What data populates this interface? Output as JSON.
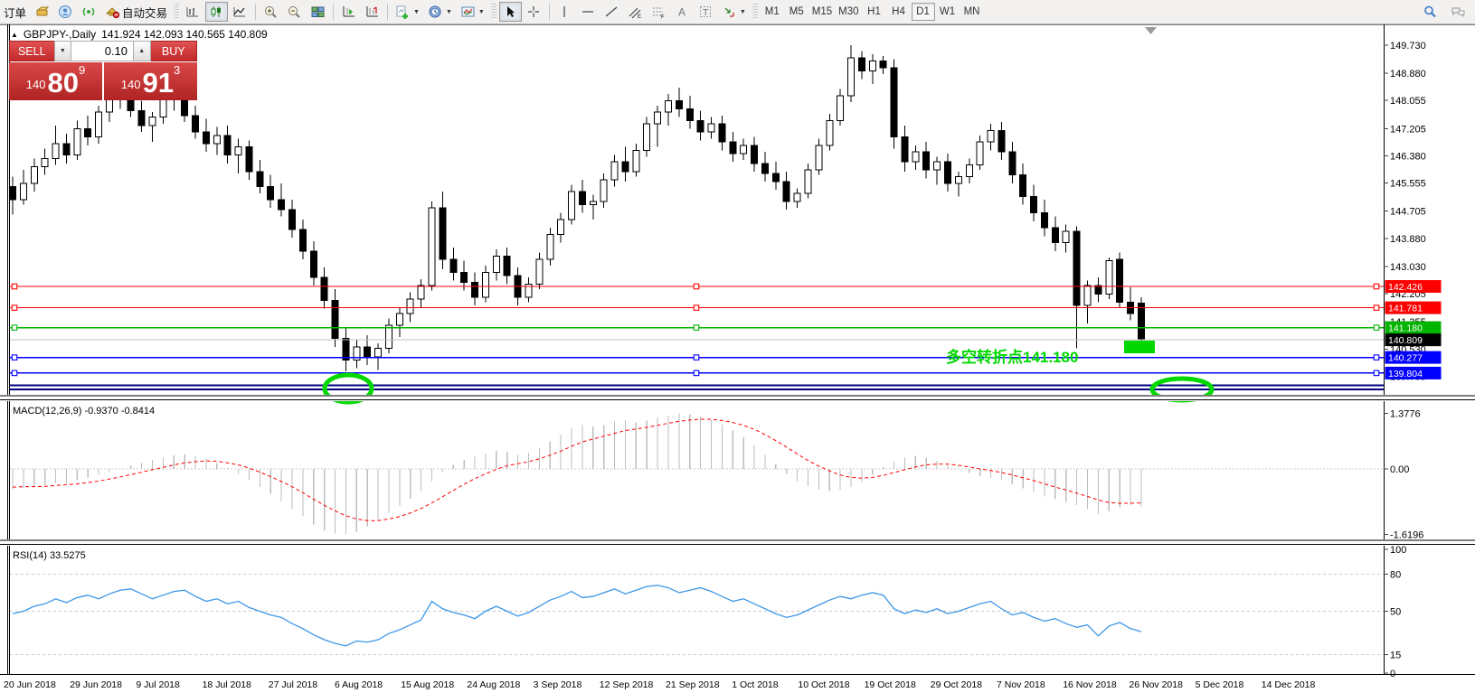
{
  "toolbar": {
    "new_order_label": "订单",
    "autotrading_label": "自动交易",
    "timeframes": [
      "M1",
      "M5",
      "M15",
      "M30",
      "H1",
      "H4",
      "D1",
      "W1",
      "MN"
    ],
    "active_timeframe": "D1"
  },
  "window_title": {
    "symbol": "GBPJPY-,Daily",
    "ohlc": "141.924 142.093 140.565 140.809"
  },
  "trade_panel": {
    "sell_label": "SELL",
    "buy_label": "BUY",
    "volume": "0.10",
    "sell_price": {
      "small": "140",
      "big": "80",
      "sup": "9"
    },
    "buy_price": {
      "small": "140",
      "big": "91",
      "sup": "3"
    }
  },
  "chart_data": {
    "type": "candlestick+indicators",
    "symbol": "GBPJPY-",
    "period": "Daily",
    "price_axis_ticks": [
      "149.730",
      "148.880",
      "148.055",
      "147.205",
      "146.380",
      "145.555",
      "144.705",
      "143.880",
      "143.030",
      "142.205",
      "141.355",
      "140.530",
      "139.705"
    ],
    "date_labels": [
      "20 Jun 2018",
      "29 Jun 2018",
      "9 Jul 2018",
      "18 Jul 2018",
      "27 Jul 2018",
      "6 Aug 2018",
      "15 Aug 2018",
      "24 Aug 2018",
      "3 Sep 2018",
      "12 Sep 2018",
      "21 Sep 2018",
      "1 Oct 2018",
      "10 Oct 2018",
      "19 Oct 2018",
      "29 Oct 2018",
      "7 Nov 2018",
      "16 Nov 2018",
      "26 Nov 2018",
      "5 Dec 2018",
      "14 Dec 2018"
    ],
    "hlines": [
      {
        "price": 142.426,
        "color": "#ff0000",
        "label": "142.426",
        "width": 1.2
      },
      {
        "price": 141.781,
        "color": "#ff0000",
        "label": "141.781",
        "width": 1.2
      },
      {
        "price": 141.18,
        "color": "#00b400",
        "label": "141.180",
        "width": 1.4
      },
      {
        "price": 140.277,
        "color": "#0000ff",
        "label": "140.277",
        "width": 1.4
      },
      {
        "price": 139.804,
        "color": "#0000ff",
        "label": "139.804",
        "width": 1.4
      },
      {
        "price": 139.43,
        "color": "#000080",
        "label": null,
        "width": 2
      },
      {
        "price": 139.31,
        "color": "#000080",
        "label": null,
        "width": 2
      }
    ],
    "bid_line": {
      "price": 140.809,
      "color": "#c0c0c0",
      "label": "140.809",
      "label_bg": "#000000"
    },
    "annotation": {
      "text": "多空转折点141.180",
      "color": "#00d800"
    },
    "candles": [
      [
        145.45,
        145.75,
        144.6,
        145.05
      ],
      [
        145.05,
        145.95,
        144.9,
        145.55
      ],
      [
        145.55,
        146.3,
        145.3,
        146.05
      ],
      [
        146.05,
        146.6,
        145.8,
        146.3
      ],
      [
        146.3,
        147.3,
        146.1,
        146.75
      ],
      [
        146.75,
        147.05,
        146.15,
        146.4
      ],
      [
        146.4,
        147.45,
        146.25,
        147.2
      ],
      [
        147.2,
        147.6,
        146.7,
        146.95
      ],
      [
        146.95,
        147.9,
        146.75,
        147.7
      ],
      [
        147.7,
        148.45,
        147.4,
        148.15
      ],
      [
        148.15,
        148.75,
        147.8,
        148.35
      ],
      [
        148.35,
        148.55,
        147.55,
        147.75
      ],
      [
        147.75,
        148.05,
        147.1,
        147.3
      ],
      [
        147.3,
        147.7,
        146.8,
        147.55
      ],
      [
        147.55,
        148.35,
        147.35,
        148.1
      ],
      [
        148.1,
        148.6,
        147.75,
        148.25
      ],
      [
        148.25,
        148.4,
        147.4,
        147.6
      ],
      [
        147.6,
        147.9,
        146.9,
        147.1
      ],
      [
        147.1,
        147.5,
        146.5,
        146.75
      ],
      [
        146.75,
        147.25,
        146.4,
        147.0
      ],
      [
        147.0,
        147.3,
        146.15,
        146.4
      ],
      [
        146.4,
        146.9,
        145.85,
        146.65
      ],
      [
        146.65,
        146.85,
        145.65,
        145.9
      ],
      [
        145.9,
        146.25,
        145.25,
        145.45
      ],
      [
        145.45,
        145.8,
        144.8,
        145.05
      ],
      [
        145.05,
        145.55,
        144.55,
        144.75
      ],
      [
        144.75,
        145.05,
        143.9,
        144.15
      ],
      [
        144.15,
        144.45,
        143.25,
        143.5
      ],
      [
        143.5,
        143.8,
        142.45,
        142.7
      ],
      [
        142.7,
        143.0,
        141.75,
        142.0
      ],
      [
        142.0,
        142.35,
        140.6,
        140.85
      ],
      [
        140.85,
        141.2,
        139.85,
        140.2
      ],
      [
        140.2,
        140.8,
        139.95,
        140.6
      ],
      [
        140.6,
        140.95,
        140.05,
        140.3
      ],
      [
        140.3,
        140.7,
        139.9,
        140.55
      ],
      [
        140.55,
        141.45,
        140.4,
        141.25
      ],
      [
        141.25,
        141.8,
        140.9,
        141.6
      ],
      [
        141.6,
        142.25,
        141.35,
        142.05
      ],
      [
        142.05,
        142.65,
        141.8,
        142.45
      ],
      [
        142.45,
        145.0,
        142.3,
        144.8
      ],
      [
        144.8,
        145.3,
        142.95,
        143.25
      ],
      [
        143.25,
        143.6,
        142.6,
        142.85
      ],
      [
        142.85,
        143.2,
        142.3,
        142.55
      ],
      [
        142.55,
        142.85,
        141.85,
        142.1
      ],
      [
        142.1,
        143.05,
        141.95,
        142.85
      ],
      [
        142.85,
        143.55,
        142.6,
        143.35
      ],
      [
        143.35,
        143.6,
        142.5,
        142.75
      ],
      [
        142.75,
        143.0,
        141.85,
        142.1
      ],
      [
        142.1,
        142.7,
        141.95,
        142.5
      ],
      [
        142.5,
        143.45,
        142.35,
        143.25
      ],
      [
        143.25,
        144.2,
        143.05,
        144.0
      ],
      [
        144.0,
        144.65,
        143.75,
        144.45
      ],
      [
        144.45,
        145.5,
        144.3,
        145.3
      ],
      [
        145.3,
        145.65,
        144.65,
        144.9
      ],
      [
        144.9,
        145.2,
        144.45,
        145.0
      ],
      [
        145.0,
        145.85,
        144.8,
        145.65
      ],
      [
        145.65,
        146.4,
        145.45,
        146.2
      ],
      [
        146.2,
        146.65,
        145.6,
        145.9
      ],
      [
        145.9,
        146.75,
        145.75,
        146.55
      ],
      [
        146.55,
        147.55,
        146.35,
        147.35
      ],
      [
        147.35,
        147.9,
        146.65,
        147.7
      ],
      [
        147.7,
        148.25,
        147.3,
        148.05
      ],
      [
        148.05,
        148.45,
        147.55,
        147.8
      ],
      [
        147.8,
        148.2,
        147.2,
        147.45
      ],
      [
        147.45,
        147.75,
        146.85,
        147.1
      ],
      [
        147.1,
        147.55,
        146.9,
        147.35
      ],
      [
        147.35,
        147.6,
        146.55,
        146.8
      ],
      [
        146.8,
        147.1,
        146.2,
        146.45
      ],
      [
        146.45,
        146.9,
        146.25,
        146.7
      ],
      [
        146.7,
        146.95,
        145.9,
        146.15
      ],
      [
        146.15,
        146.5,
        145.6,
        145.85
      ],
      [
        145.85,
        146.2,
        145.35,
        145.6
      ],
      [
        145.6,
        145.9,
        144.75,
        145.0
      ],
      [
        145.0,
        145.4,
        144.8,
        145.25
      ],
      [
        145.25,
        146.15,
        145.1,
        145.95
      ],
      [
        145.95,
        146.9,
        145.8,
        146.7
      ],
      [
        146.7,
        147.65,
        146.55,
        147.45
      ],
      [
        147.45,
        148.4,
        147.3,
        148.2
      ],
      [
        148.2,
        149.73,
        148.0,
        149.35
      ],
      [
        149.35,
        149.55,
        148.7,
        148.95
      ],
      [
        148.95,
        149.45,
        148.55,
        149.25
      ],
      [
        149.25,
        149.4,
        148.85,
        149.05
      ],
      [
        149.05,
        149.3,
        146.6,
        146.95
      ],
      [
        146.95,
        147.3,
        145.9,
        146.2
      ],
      [
        146.2,
        146.7,
        145.95,
        146.5
      ],
      [
        146.5,
        146.8,
        145.7,
        145.95
      ],
      [
        145.95,
        146.35,
        145.5,
        146.2
      ],
      [
        146.2,
        146.45,
        145.3,
        145.55
      ],
      [
        145.55,
        145.9,
        145.15,
        145.75
      ],
      [
        145.75,
        146.3,
        145.55,
        146.1
      ],
      [
        146.1,
        147.0,
        145.95,
        146.8
      ],
      [
        146.8,
        147.35,
        146.55,
        147.15
      ],
      [
        147.15,
        147.4,
        146.25,
        146.5
      ],
      [
        146.5,
        146.8,
        145.55,
        145.8
      ],
      [
        145.8,
        146.15,
        144.9,
        145.15
      ],
      [
        145.15,
        145.5,
        144.4,
        144.65
      ],
      [
        144.65,
        145.05,
        143.95,
        144.2
      ],
      [
        144.2,
        144.55,
        143.5,
        143.75
      ],
      [
        143.75,
        144.3,
        143.45,
        144.1
      ],
      [
        144.1,
        144.25,
        140.55,
        141.85
      ],
      [
        141.85,
        142.6,
        141.3,
        142.45
      ],
      [
        142.45,
        142.7,
        141.95,
        142.2
      ],
      [
        142.2,
        143.3,
        142.05,
        143.2
      ],
      [
        143.25,
        143.45,
        141.8,
        141.95
      ],
      [
        141.95,
        142.4,
        141.4,
        141.6
      ],
      [
        141.924,
        142.093,
        140.565,
        140.809
      ]
    ],
    "macd": {
      "label": "MACD(12,26,9) -0.9370 -0.8414",
      "axis_ticks": [
        "1.3776",
        "0.00",
        "-1.6196"
      ],
      "main": [
        -0.52,
        -0.48,
        -0.45,
        -0.4,
        -0.36,
        -0.33,
        -0.28,
        -0.22,
        -0.15,
        -0.08,
        0.0,
        0.08,
        0.15,
        0.22,
        0.28,
        0.33,
        0.36,
        0.32,
        0.25,
        0.15,
        0.02,
        -0.12,
        -0.28,
        -0.45,
        -0.62,
        -0.8,
        -0.98,
        -1.18,
        -1.38,
        -1.52,
        -1.6,
        -1.62,
        -1.55,
        -1.42,
        -1.28,
        -1.1,
        -0.92,
        -0.74,
        -0.55,
        -0.3,
        -0.08,
        0.1,
        0.22,
        0.3,
        0.38,
        0.45,
        0.42,
        0.35,
        0.4,
        0.52,
        0.68,
        0.85,
        1.02,
        1.1,
        1.05,
        1.08,
        1.18,
        1.22,
        1.15,
        1.2,
        1.28,
        1.32,
        1.38,
        1.35,
        1.3,
        1.22,
        1.1,
        0.95,
        0.78,
        0.58,
        0.35,
        0.12,
        -0.12,
        -0.3,
        -0.42,
        -0.5,
        -0.55,
        -0.52,
        -0.45,
        -0.32,
        -0.15,
        0.05,
        0.18,
        0.28,
        0.32,
        0.28,
        0.2,
        0.1,
        0.0,
        -0.1,
        -0.18,
        -0.22,
        -0.28,
        -0.38,
        -0.48,
        -0.58,
        -0.68,
        -0.75,
        -0.82,
        -0.9,
        -1.0,
        -1.12,
        -1.05,
        -0.95,
        -0.9,
        -0.937
      ],
      "signal": [
        -0.45,
        -0.44,
        -0.44,
        -0.43,
        -0.41,
        -0.39,
        -0.37,
        -0.34,
        -0.3,
        -0.25,
        -0.2,
        -0.14,
        -0.08,
        -0.02,
        0.04,
        0.1,
        0.15,
        0.18,
        0.2,
        0.19,
        0.15,
        0.1,
        0.02,
        -0.08,
        -0.19,
        -0.31,
        -0.44,
        -0.59,
        -0.75,
        -0.9,
        -1.04,
        -1.16,
        -1.24,
        -1.28,
        -1.28,
        -1.24,
        -1.18,
        -1.09,
        -0.98,
        -0.84,
        -0.69,
        -0.53,
        -0.38,
        -0.24,
        -0.12,
        -0.01,
        0.08,
        0.13,
        0.18,
        0.25,
        0.34,
        0.44,
        0.56,
        0.67,
        0.74,
        0.81,
        0.88,
        0.95,
        0.99,
        1.03,
        1.08,
        1.13,
        1.18,
        1.21,
        1.23,
        1.23,
        1.2,
        1.15,
        1.08,
        0.98,
        0.85,
        0.7,
        0.54,
        0.37,
        0.21,
        0.07,
        -0.05,
        -0.15,
        -0.21,
        -0.23,
        -0.21,
        -0.16,
        -0.09,
        -0.02,
        0.05,
        0.1,
        0.12,
        0.12,
        0.09,
        0.05,
        0.0,
        -0.04,
        -0.09,
        -0.15,
        -0.22,
        -0.29,
        -0.37,
        -0.45,
        -0.52,
        -0.6,
        -0.68,
        -0.77,
        -0.83,
        -0.85,
        -0.85,
        -0.8414
      ]
    },
    "rsi": {
      "label": "RSI(14) 33.5275",
      "axis_ticks": [
        "100",
        "80",
        "50",
        "15",
        "0"
      ],
      "levels": [
        80,
        50,
        15
      ],
      "values": [
        48,
        50,
        54,
        56,
        60,
        57,
        61,
        63,
        60,
        64,
        67,
        68,
        64,
        60,
        63,
        66,
        67,
        62,
        58,
        60,
        56,
        58,
        53,
        50,
        47,
        45,
        40,
        36,
        31,
        27,
        24,
        22,
        26,
        25,
        27,
        32,
        35,
        39,
        43,
        58,
        52,
        49,
        47,
        44,
        50,
        54,
        50,
        46,
        49,
        54,
        59,
        62,
        66,
        61,
        62,
        65,
        68,
        64,
        67,
        70,
        71,
        69,
        65,
        67,
        69,
        66,
        62,
        58,
        60,
        56,
        52,
        48,
        45,
        47,
        51,
        55,
        59,
        62,
        60,
        63,
        65,
        63,
        52,
        48,
        51,
        49,
        52,
        48,
        50,
        53,
        56,
        58,
        52,
        47,
        49,
        45,
        42,
        44,
        40,
        37,
        39,
        30,
        38,
        41,
        36,
        33.53
      ]
    }
  }
}
